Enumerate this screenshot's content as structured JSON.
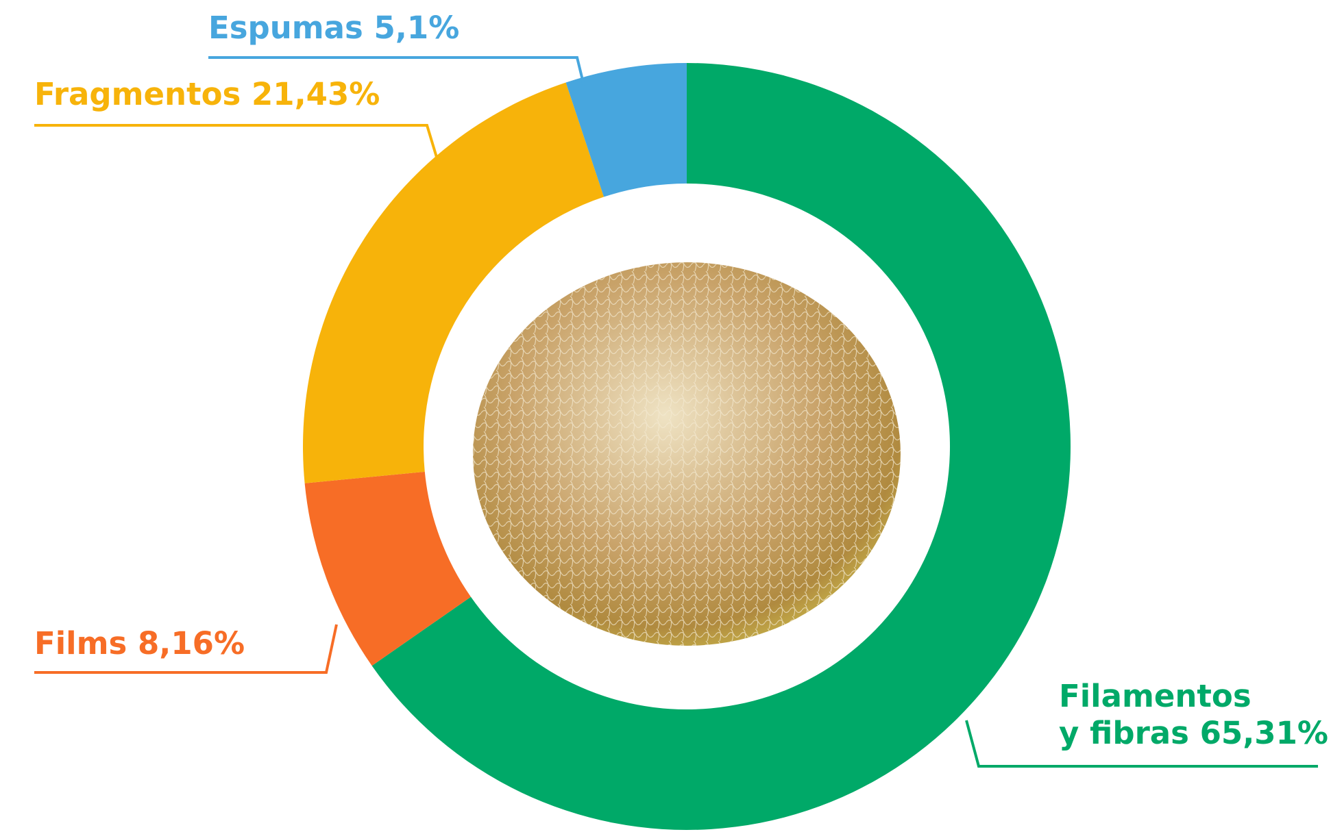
{
  "chart_data": {
    "type": "donut",
    "categories": [
      "Filamentos\ny fibras",
      "Films",
      "Fragmentos",
      "Espumas"
    ],
    "values": [
      65.31,
      8.16,
      21.43,
      5.1
    ],
    "value_labels": [
      "65,31%",
      "8,16%",
      "21,43%",
      "5,1%"
    ],
    "colors": [
      "#00a968",
      "#f76d26",
      "#f7b30a",
      "#47a6de"
    ]
  }
}
